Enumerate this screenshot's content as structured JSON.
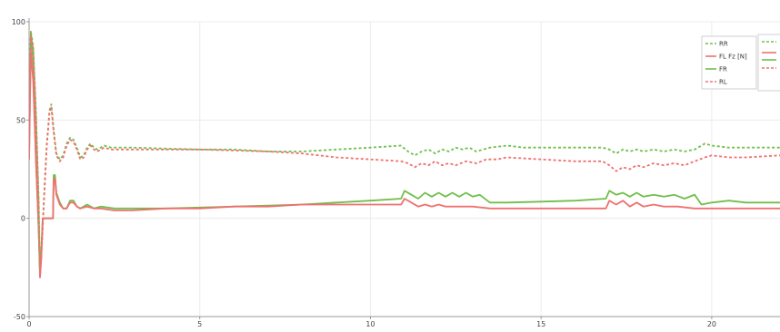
{
  "chart_data": {
    "type": "line",
    "title": "",
    "xlabel": "",
    "ylabel": "",
    "xlim": [
      0,
      22
    ],
    "ylim": [
      -50,
      100
    ],
    "x_ticks": [
      "0",
      "5",
      "10",
      "15",
      "20"
    ],
    "y_ticks": [
      "100",
      "50",
      "0",
      "-50"
    ],
    "grid": true,
    "legend_position": "top-right",
    "series": [
      {
        "name": "RR",
        "color": "#6fbf4a",
        "dash": true,
        "points": [
          [
            0,
            60
          ],
          [
            0.05,
            95
          ],
          [
            0.12,
            88
          ],
          [
            0.2,
            55
          ],
          [
            0.28,
            10
          ],
          [
            0.32,
            -28
          ],
          [
            0.38,
            -10
          ],
          [
            0.45,
            15
          ],
          [
            0.52,
            38
          ],
          [
            0.6,
            55
          ],
          [
            0.65,
            58
          ],
          [
            0.72,
            45
          ],
          [
            0.8,
            33
          ],
          [
            0.9,
            30
          ],
          [
            1.0,
            32
          ],
          [
            1.1,
            38
          ],
          [
            1.2,
            41
          ],
          [
            1.3,
            40
          ],
          [
            1.4,
            36
          ],
          [
            1.5,
            31
          ],
          [
            1.6,
            32
          ],
          [
            1.7,
            36
          ],
          [
            1.8,
            38
          ],
          [
            1.9,
            36
          ],
          [
            2.0,
            35
          ],
          [
            2.2,
            37
          ],
          [
            2.4,
            36
          ],
          [
            2.6,
            36
          ],
          [
            3,
            36
          ],
          [
            4,
            35.5
          ],
          [
            5,
            35
          ],
          [
            6,
            35
          ],
          [
            7,
            34
          ],
          [
            8,
            34
          ],
          [
            9,
            35
          ],
          [
            10,
            36
          ],
          [
            10.9,
            37
          ],
          [
            11.1,
            34
          ],
          [
            11.3,
            32
          ],
          [
            11.5,
            34
          ],
          [
            11.7,
            35
          ],
          [
            11.9,
            33
          ],
          [
            12.1,
            35
          ],
          [
            12.3,
            34
          ],
          [
            12.5,
            36
          ],
          [
            12.7,
            35
          ],
          [
            12.9,
            36
          ],
          [
            13.1,
            34
          ],
          [
            13.3,
            35
          ],
          [
            13.5,
            36
          ],
          [
            14,
            37
          ],
          [
            14.5,
            36
          ],
          [
            15,
            36
          ],
          [
            16,
            36
          ],
          [
            16.8,
            36
          ],
          [
            17.0,
            35
          ],
          [
            17.2,
            33
          ],
          [
            17.4,
            35
          ],
          [
            17.6,
            34
          ],
          [
            17.8,
            35
          ],
          [
            18,
            34
          ],
          [
            18.3,
            35
          ],
          [
            18.6,
            34
          ],
          [
            18.9,
            35
          ],
          [
            19.2,
            34
          ],
          [
            19.5,
            35
          ],
          [
            19.8,
            38
          ],
          [
            20,
            37
          ],
          [
            20.5,
            36
          ],
          [
            21,
            36
          ],
          [
            22,
            36
          ]
        ]
      },
      {
        "name": "FL Fz [N]",
        "color": "#f07070",
        "dash": false,
        "points": [
          [
            0,
            30
          ],
          [
            0.05,
            85
          ],
          [
            0.12,
            70
          ],
          [
            0.2,
            30
          ],
          [
            0.28,
            -5
          ],
          [
            0.32,
            -30
          ],
          [
            0.36,
            -20
          ],
          [
            0.4,
            0
          ],
          [
            0.7,
            0
          ],
          [
            0.72,
            20
          ],
          [
            0.76,
            20
          ],
          [
            0.8,
            12
          ],
          [
            0.9,
            7
          ],
          [
            1.0,
            5
          ],
          [
            1.1,
            5
          ],
          [
            1.2,
            8
          ],
          [
            1.3,
            8
          ],
          [
            1.4,
            6
          ],
          [
            1.5,
            5
          ],
          [
            1.7,
            6
          ],
          [
            1.9,
            5
          ],
          [
            2.1,
            5
          ],
          [
            2.5,
            4
          ],
          [
            3,
            4
          ],
          [
            4,
            5
          ],
          [
            5,
            5
          ],
          [
            6,
            6
          ],
          [
            7,
            6
          ],
          [
            8,
            7
          ],
          [
            9,
            7
          ],
          [
            10,
            7
          ],
          [
            10.9,
            7
          ],
          [
            11.0,
            10
          ],
          [
            11.2,
            8
          ],
          [
            11.4,
            6
          ],
          [
            11.6,
            7
          ],
          [
            11.8,
            6
          ],
          [
            12.0,
            7
          ],
          [
            12.2,
            6
          ],
          [
            12.5,
            6
          ],
          [
            13,
            6
          ],
          [
            13.5,
            5
          ],
          [
            14,
            5
          ],
          [
            15,
            5
          ],
          [
            16,
            5
          ],
          [
            16.9,
            5
          ],
          [
            17.0,
            9
          ],
          [
            17.2,
            7
          ],
          [
            17.4,
            9
          ],
          [
            17.6,
            6
          ],
          [
            17.8,
            8
          ],
          [
            18.0,
            6
          ],
          [
            18.3,
            7
          ],
          [
            18.6,
            6
          ],
          [
            19,
            6
          ],
          [
            19.5,
            5
          ],
          [
            20,
            5
          ],
          [
            21,
            5
          ],
          [
            22,
            5
          ]
        ]
      },
      {
        "name": "FR",
        "color": "#6fbf4a",
        "dash": false,
        "points": [
          [
            0,
            30
          ],
          [
            0.05,
            95
          ],
          [
            0.12,
            80
          ],
          [
            0.2,
            30
          ],
          [
            0.28,
            -5
          ],
          [
            0.32,
            -28
          ],
          [
            0.36,
            -15
          ],
          [
            0.4,
            0
          ],
          [
            0.7,
            0
          ],
          [
            0.72,
            22
          ],
          [
            0.76,
            22
          ],
          [
            0.8,
            13
          ],
          [
            0.9,
            8
          ],
          [
            1.0,
            5
          ],
          [
            1.1,
            5
          ],
          [
            1.2,
            9
          ],
          [
            1.3,
            9
          ],
          [
            1.4,
            6
          ],
          [
            1.5,
            5
          ],
          [
            1.7,
            7
          ],
          [
            1.9,
            5
          ],
          [
            2.1,
            6
          ],
          [
            2.5,
            5
          ],
          [
            3,
            5
          ],
          [
            4,
            5
          ],
          [
            5,
            5.5
          ],
          [
            6,
            6
          ],
          [
            7,
            6.5
          ],
          [
            8,
            7
          ],
          [
            9,
            8
          ],
          [
            10,
            9
          ],
          [
            10.9,
            10
          ],
          [
            11.0,
            14
          ],
          [
            11.2,
            12
          ],
          [
            11.4,
            10
          ],
          [
            11.6,
            13
          ],
          [
            11.8,
            11
          ],
          [
            12.0,
            13
          ],
          [
            12.2,
            11
          ],
          [
            12.4,
            13
          ],
          [
            12.6,
            11
          ],
          [
            12.8,
            13
          ],
          [
            13.0,
            11
          ],
          [
            13.2,
            12
          ],
          [
            13.5,
            8
          ],
          [
            14,
            8
          ],
          [
            15,
            8.5
          ],
          [
            16,
            9
          ],
          [
            16.9,
            10
          ],
          [
            17.0,
            14
          ],
          [
            17.2,
            12
          ],
          [
            17.4,
            13
          ],
          [
            17.6,
            11
          ],
          [
            17.8,
            13
          ],
          [
            18.0,
            11
          ],
          [
            18.3,
            12
          ],
          [
            18.6,
            11
          ],
          [
            18.9,
            12
          ],
          [
            19.2,
            10
          ],
          [
            19.5,
            12
          ],
          [
            19.7,
            7
          ],
          [
            20,
            8
          ],
          [
            20.5,
            9
          ],
          [
            21,
            8
          ],
          [
            22,
            8
          ]
        ]
      },
      {
        "name": "RL",
        "color": "#f07070",
        "dash": true,
        "points": [
          [
            0,
            60
          ],
          [
            0.05,
            93
          ],
          [
            0.12,
            86
          ],
          [
            0.2,
            53
          ],
          [
            0.28,
            8
          ],
          [
            0.32,
            -30
          ],
          [
            0.38,
            -12
          ],
          [
            0.45,
            14
          ],
          [
            0.52,
            37
          ],
          [
            0.6,
            54
          ],
          [
            0.65,
            57
          ],
          [
            0.72,
            44
          ],
          [
            0.8,
            32
          ],
          [
            0.9,
            29
          ],
          [
            1.0,
            31
          ],
          [
            1.1,
            37
          ],
          [
            1.2,
            40
          ],
          [
            1.3,
            39
          ],
          [
            1.4,
            35
          ],
          [
            1.5,
            30
          ],
          [
            1.6,
            31
          ],
          [
            1.7,
            35
          ],
          [
            1.8,
            37
          ],
          [
            1.9,
            35
          ],
          [
            2.0,
            34
          ],
          [
            2.2,
            36
          ],
          [
            2.4,
            35
          ],
          [
            2.6,
            35
          ],
          [
            3,
            35
          ],
          [
            4,
            35
          ],
          [
            5,
            35
          ],
          [
            6,
            34.5
          ],
          [
            7,
            34
          ],
          [
            8,
            33
          ],
          [
            9,
            31
          ],
          [
            10,
            30
          ],
          [
            10.9,
            29
          ],
          [
            11.1,
            28
          ],
          [
            11.3,
            26
          ],
          [
            11.5,
            28
          ],
          [
            11.7,
            27
          ],
          [
            11.9,
            29
          ],
          [
            12.1,
            27
          ],
          [
            12.3,
            28
          ],
          [
            12.5,
            27
          ],
          [
            12.8,
            29
          ],
          [
            13.1,
            28
          ],
          [
            13.4,
            30
          ],
          [
            13.7,
            30
          ],
          [
            14,
            31
          ],
          [
            15,
            30
          ],
          [
            16,
            29
          ],
          [
            16.8,
            29
          ],
          [
            17.0,
            27
          ],
          [
            17.2,
            24
          ],
          [
            17.4,
            26
          ],
          [
            17.6,
            25
          ],
          [
            17.8,
            27
          ],
          [
            18.0,
            26
          ],
          [
            18.3,
            28
          ],
          [
            18.6,
            27
          ],
          [
            18.9,
            28
          ],
          [
            19.2,
            27
          ],
          [
            19.5,
            29
          ],
          [
            19.8,
            31
          ],
          [
            20,
            32
          ],
          [
            20.5,
            31
          ],
          [
            21,
            31
          ],
          [
            22,
            32
          ]
        ]
      }
    ]
  },
  "legend": {
    "items": [
      {
        "label": "RR",
        "color": "#6fbf4a",
        "dash": true
      },
      {
        "label": "FL Fz [N]",
        "color": "#f07070",
        "dash": false
      },
      {
        "label": "FR",
        "color": "#6fbf4a",
        "dash": false
      },
      {
        "label": "RL",
        "color": "#f07070",
        "dash": true
      }
    ]
  }
}
